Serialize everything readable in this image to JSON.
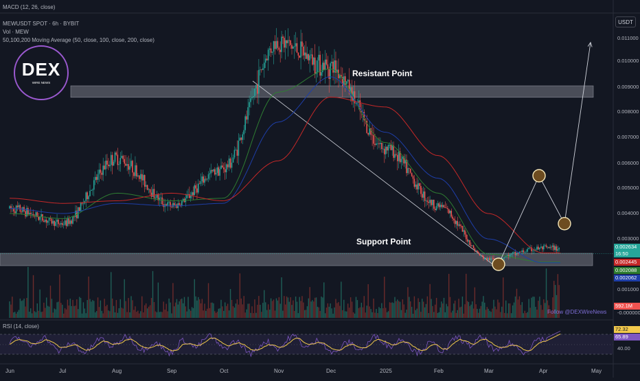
{
  "indicators": {
    "macd_label": "MACD (12, 26, close)",
    "symbol_label": "MEWUSDT SPOT · 6h · BYBIT",
    "vol_label": "Vol · MEW",
    "ma_label": "50,100,200 Moving Average (50, close, 100, close, 200, close)",
    "rsi_label": "RSI (14, close)"
  },
  "logo": {
    "text": "DEX",
    "subtext": "WIRE NEWS"
  },
  "annotations": {
    "resistance": "Resistant Point",
    "support": "Support Point",
    "follow": "Follow @DEXWireNews"
  },
  "axis": {
    "currency": "USDT",
    "price_ticks": [
      "0.011000",
      "0.010000",
      "0.009000",
      "0.008000",
      "0.007000",
      "0.006000",
      "0.005000",
      "0.004000",
      "0.003000",
      "0.001000",
      "-0.000000"
    ],
    "date_ticks": [
      "Jun",
      "Jul",
      "Aug",
      "Sep",
      "Oct",
      "Nov",
      "Dec",
      "2025",
      "Feb",
      "Mar",
      "Apr",
      "May"
    ],
    "rsi_ticks": [
      "40.00"
    ]
  },
  "badges": {
    "last_price": "0.002634",
    "countdown": "16:50",
    "ma_red": "0.002445",
    "ma_green": "0.002088",
    "ma_blue": "0.002062",
    "volume": "592.1M",
    "rsi_value": "72.32",
    "rsi_ma": "65.89"
  },
  "colors": {
    "background": "#131722",
    "up": "#26a69a",
    "down": "#ef5350",
    "ma50": "#2e7d32",
    "ma100": "#1e3ea8",
    "ma200": "#c62828",
    "rsi": "#7e57c2",
    "rsi_ma": "#f2c94c",
    "circle_marker": "#f5e6b8",
    "logo_ring": "#9b59d0"
  },
  "chart_data": {
    "type": "line",
    "title": "MEWUSDT SPOT · 6h · BYBIT",
    "x": [
      "Jun",
      "Jul",
      "Aug",
      "Sep",
      "Oct",
      "Nov",
      "Dec",
      "2025",
      "Feb",
      "Mar",
      "Apr",
      "May"
    ],
    "series": [
      {
        "name": "MEWUSDT",
        "values": [
          0.0042,
          0.0036,
          0.0062,
          0.0043,
          0.0058,
          0.0108,
          0.0098,
          0.0066,
          0.0043,
          0.0022,
          0.00263,
          null
        ]
      },
      {
        "name": "MA 50",
        "values": [
          0.004,
          0.0038,
          0.0048,
          0.0045,
          0.0046,
          0.0088,
          0.0097,
          0.0068,
          0.0048,
          0.0024,
          0.00209,
          null
        ]
      },
      {
        "name": "MA 100",
        "values": [
          0.0042,
          0.004,
          0.0044,
          0.0043,
          0.0044,
          0.0076,
          0.0094,
          0.0072,
          0.0054,
          0.003,
          0.00206,
          null
        ]
      },
      {
        "name": "MA 200",
        "values": [
          0.0046,
          0.0044,
          0.0045,
          0.0048,
          0.0045,
          0.0061,
          0.0086,
          0.0082,
          0.0063,
          0.004,
          0.00245,
          null
        ]
      }
    ],
    "resistance_zone": [
      0.0087,
      0.009
    ],
    "support_zone": [
      0.002,
      0.0025
    ],
    "projection_path": [
      {
        "date": "Mar",
        "price": 0.002
      },
      {
        "date": "Mar",
        "price": 0.0055
      },
      {
        "date": "Apr",
        "price": 0.0036
      },
      {
        "date": "May",
        "price": 0.0108
      }
    ],
    "last": {
      "price": 0.002634,
      "volume": "592.1M",
      "rsi": 72.32,
      "rsi_ma": 65.89
    },
    "ylim": [
      0,
      0.0115
    ],
    "scale": "linear",
    "grid": false
  }
}
